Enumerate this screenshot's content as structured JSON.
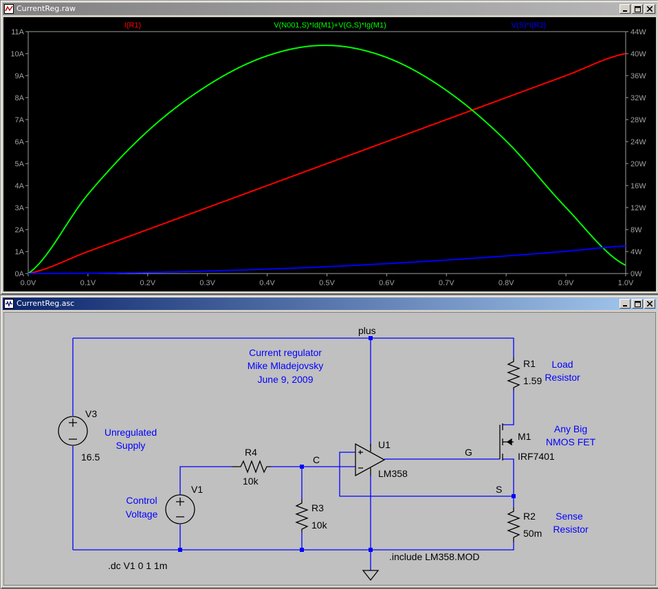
{
  "plot_window": {
    "title": "CurrentReg.raw",
    "icon": "waveform-icon"
  },
  "schematic_window": {
    "title": "CurrentReg.asc",
    "icon": "schematic-icon"
  },
  "colors": {
    "plot_bg": "#000000",
    "axis": "#a0a0a0",
    "grid": "#808080",
    "series_current": "#ff0000",
    "series_power": "#00ff00",
    "series_sense": "#0000ff",
    "wire": "#0000ff",
    "schematic_text": "#000000",
    "comment_text": "#0000ff",
    "schematic_bg": "#c0c0c0"
  },
  "chart_data": {
    "type": "line",
    "x": [
      0.0,
      0.1,
      0.2,
      0.3,
      0.4,
      0.5,
      0.6,
      0.7,
      0.8,
      0.9,
      1.0
    ],
    "xlim": [
      0,
      1
    ],
    "x_ticks": [
      "0.0V",
      "0.1V",
      "0.2V",
      "0.3V",
      "0.4V",
      "0.5V",
      "0.6V",
      "0.7V",
      "0.8V",
      "0.9V",
      "1.0V"
    ],
    "y_left_ticks": [
      "0A",
      "1A",
      "2A",
      "3A",
      "4A",
      "5A",
      "6A",
      "7A",
      "8A",
      "9A",
      "10A",
      "11A"
    ],
    "y_left_lim": [
      0,
      11
    ],
    "y_right_ticks": [
      "0W",
      "4W",
      "8W",
      "12W",
      "16W",
      "20W",
      "24W",
      "28W",
      "32W",
      "36W",
      "40W",
      "44W"
    ],
    "y_right_lim": [
      0,
      44
    ],
    "grid": false,
    "series": [
      {
        "name": "I(R1)",
        "axis": "left",
        "color": "#ff0000",
        "values": [
          0,
          1,
          2,
          3,
          4,
          5,
          6,
          7,
          8,
          9,
          10
        ]
      },
      {
        "name": "V(N001,S)*Id(M1)+V(G,S)*Ig(M1)",
        "axis": "right",
        "color": "#00ff00",
        "values": [
          0,
          14.4,
          25.9,
          34.2,
          39.6,
          41.5,
          39.3,
          33.3,
          24.1,
          12.0,
          1.5
        ]
      },
      {
        "name": "V(S)*I(R2)",
        "axis": "right",
        "color": "#0000ff",
        "values": [
          0,
          0.05,
          0.2,
          0.45,
          0.8,
          1.25,
          1.8,
          2.45,
          3.2,
          4.05,
          5.0
        ]
      }
    ]
  },
  "schematic": {
    "comment": [
      "Current regulator",
      "Mike Mladejovsky",
      "June 9, 2009"
    ],
    "nets": {
      "plus": "plus",
      "c": "C",
      "g": "G",
      "s": "S"
    },
    "components": {
      "v3": {
        "ref": "V3",
        "value": "16.5",
        "desc": [
          "Unregulated",
          "Supply"
        ]
      },
      "v1": {
        "ref": "V1",
        "desc": [
          "Control",
          "Voltage"
        ]
      },
      "r4": {
        "ref": "R4",
        "value": "10k"
      },
      "r3": {
        "ref": "R3",
        "value": "10k"
      },
      "r1": {
        "ref": "R1",
        "value": "1.59",
        "desc": [
          "Load",
          "Resistor"
        ]
      },
      "r2": {
        "ref": "R2",
        "value": "50m",
        "desc": [
          "Sense",
          "Resistor"
        ]
      },
      "m1": {
        "ref": "M1",
        "value": "IRF7401",
        "desc": [
          "Any Big",
          "NMOS FET"
        ]
      },
      "u1": {
        "ref": "U1",
        "value": "LM358"
      }
    },
    "directives": {
      "dc": ".dc V1 0 1 1m",
      "include": ".include LM358.MOD"
    }
  }
}
